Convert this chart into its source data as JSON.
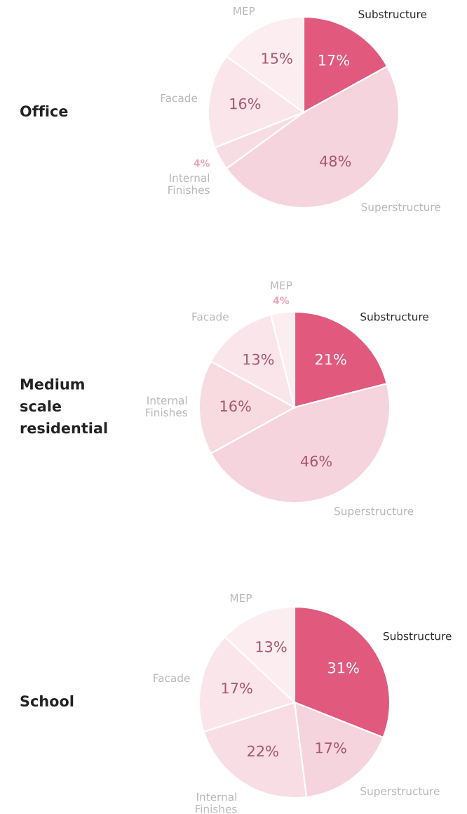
{
  "chart_data": [
    {
      "type": "pie",
      "title": "Office",
      "categories": [
        "Substructure",
        "Superstructure",
        "Internal\nFinishes",
        "Facade",
        "MEP"
      ],
      "values": [
        17,
        48,
        4,
        16,
        15
      ],
      "value_labels": [
        "17%",
        "48%",
        "4%",
        "16%",
        "15%"
      ],
      "colors": [
        "#e15a7e",
        "#f6d4dd",
        "#f8dce3",
        "#fae5ea",
        "#fcedf1"
      ],
      "legend": false
    },
    {
      "type": "pie",
      "title": "Medium\nscale\nresidential",
      "categories": [
        "Substructure",
        "Superstructure",
        "Internal\nFinishes",
        "Facade",
        "MEP"
      ],
      "values": [
        21,
        46,
        16,
        13,
        4
      ],
      "value_labels": [
        "21%",
        "46%",
        "16%",
        "13%",
        "4%"
      ],
      "colors": [
        "#e15a7e",
        "#f6d4dd",
        "#f8dae1",
        "#fae5ea",
        "#fcedf1"
      ],
      "legend": false
    },
    {
      "type": "pie",
      "title": "School",
      "categories": [
        "Substructure",
        "Superstructure",
        "Internal\nFinishes",
        "Facade",
        "MEP"
      ],
      "values": [
        31,
        17,
        22,
        17,
        13
      ],
      "value_labels": [
        "31%",
        "17%",
        "22%",
        "17%",
        "13%"
      ],
      "colors": [
        "#e15a7e",
        "#f6d4dd",
        "#f8dde4",
        "#fae5ea",
        "#fcedf1"
      ],
      "legend": false
    }
  ]
}
